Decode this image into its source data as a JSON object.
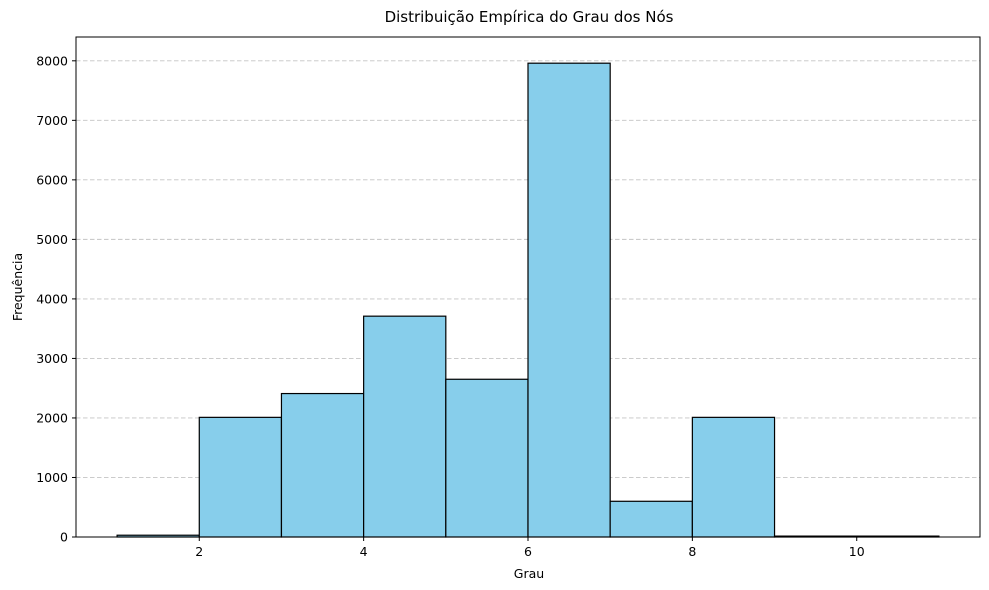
{
  "chart_data": {
    "type": "bar",
    "title": "Distribuição Empírica do Grau dos Nós",
    "xlabel": "Grau",
    "ylabel": "Frequência",
    "xlim": [
      0.5,
      11.5
    ],
    "ylim": [
      0,
      8400
    ],
    "xticks": [
      2,
      4,
      6,
      8,
      10
    ],
    "yticks": [
      0,
      1000,
      2000,
      3000,
      4000,
      5000,
      6000,
      7000,
      8000
    ],
    "grid": "y-dashed",
    "bins": [
      {
        "start": 1,
        "end": 2,
        "value": 30
      },
      {
        "start": 2,
        "end": 3,
        "value": 2010
      },
      {
        "start": 3,
        "end": 4,
        "value": 2410
      },
      {
        "start": 4,
        "end": 5,
        "value": 3710
      },
      {
        "start": 5,
        "end": 6,
        "value": 2650
      },
      {
        "start": 6,
        "end": 7,
        "value": 7960
      },
      {
        "start": 7,
        "end": 8,
        "value": 600
      },
      {
        "start": 8,
        "end": 9,
        "value": 2010
      },
      {
        "start": 9,
        "end": 10,
        "value": 15
      },
      {
        "start": 10,
        "end": 11,
        "value": 15
      }
    ],
    "bar_color": "#87CEEB",
    "edge_color": "#000000",
    "grid_color": "#c4c4c4"
  }
}
